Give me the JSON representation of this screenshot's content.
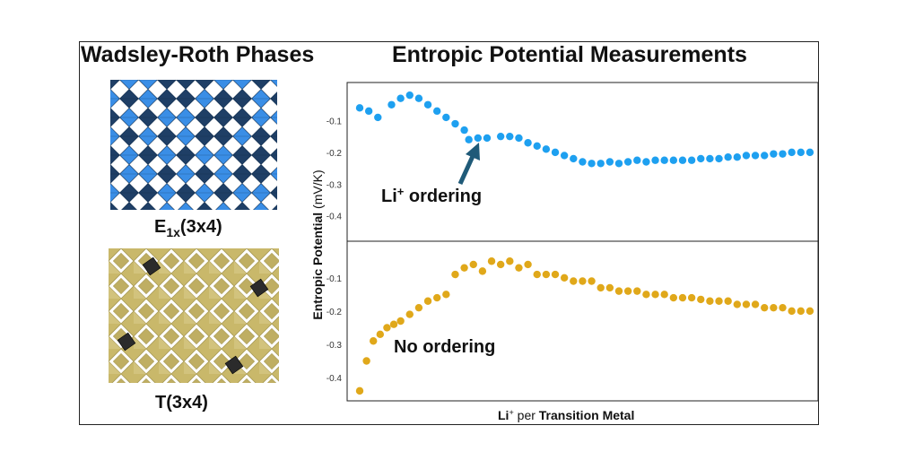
{
  "titles": {
    "left": "Wadsley-Roth Phases",
    "right": "Entropic Potential Measurements"
  },
  "structures": {
    "e_label_main": "E",
    "e_label_sub": "1x",
    "e_label_tail": "(3x4)",
    "t_label": "T(3x4)",
    "colors": {
      "e_dark": "#1f3f66",
      "e_light": "#3a8ee6",
      "t_tan": "#c9b86a",
      "t_dark": "#2b2b2b"
    }
  },
  "annotations": {
    "li_prefix": "Li",
    "li_sup": "+",
    "li_suffix": " ordering",
    "no_ordering": "No ordering"
  },
  "axes": {
    "ylabel_bold": "Entropic Potential",
    "ylabel_unit": " (mV/K)",
    "xlabel_prefix": "Li",
    "xlabel_sup": "+",
    "xlabel_mid": " per ",
    "xlabel_tail": "Transition Metal"
  },
  "chart_data": [
    {
      "type": "scatter",
      "name": "E1x(3x4)",
      "color": "#1ea0f0",
      "ylim": [
        -0.48,
        0.02
      ],
      "yticks": [
        "-0.1",
        "-0.2",
        "-0.3",
        "-0.4"
      ],
      "ytick_values": [
        -0.1,
        -0.2,
        -0.3,
        -0.4
      ],
      "x": [
        0.0,
        0.02,
        0.04,
        0.07,
        0.09,
        0.11,
        0.13,
        0.15,
        0.17,
        0.19,
        0.21,
        0.23,
        0.24,
        0.26,
        0.28,
        0.31,
        0.33,
        0.35,
        0.37,
        0.39,
        0.41,
        0.43,
        0.45,
        0.47,
        0.49,
        0.51,
        0.53,
        0.55,
        0.57,
        0.59,
        0.61,
        0.63,
        0.65,
        0.67,
        0.69,
        0.71,
        0.73,
        0.75,
        0.77,
        0.79,
        0.81,
        0.83,
        0.85,
        0.87,
        0.89,
        0.91,
        0.93,
        0.95,
        0.97,
        0.99
      ],
      "y": [
        -0.06,
        -0.07,
        -0.09,
        -0.05,
        -0.03,
        -0.02,
        -0.03,
        -0.05,
        -0.07,
        -0.09,
        -0.11,
        -0.13,
        -0.16,
        -0.155,
        -0.155,
        -0.15,
        -0.15,
        -0.155,
        -0.17,
        -0.18,
        -0.19,
        -0.2,
        -0.21,
        -0.22,
        -0.23,
        -0.235,
        -0.235,
        -0.23,
        -0.235,
        -0.23,
        -0.225,
        -0.23,
        -0.225,
        -0.225,
        -0.225,
        -0.225,
        -0.225,
        -0.22,
        -0.22,
        -0.22,
        -0.215,
        -0.215,
        -0.21,
        -0.21,
        -0.21,
        -0.205,
        -0.205,
        -0.2,
        -0.2,
        -0.2
      ]
    },
    {
      "type": "scatter",
      "name": "T(3x4)",
      "color": "#e0a81a",
      "ylim": [
        -0.47,
        0.01
      ],
      "yticks": [
        "-0.1",
        "-0.2",
        "-0.3",
        "-0.4"
      ],
      "ytick_values": [
        -0.1,
        -0.2,
        -0.3,
        -0.4
      ],
      "x": [
        0.0,
        0.015,
        0.03,
        0.045,
        0.06,
        0.075,
        0.09,
        0.11,
        0.13,
        0.15,
        0.17,
        0.19,
        0.21,
        0.23,
        0.25,
        0.27,
        0.29,
        0.31,
        0.33,
        0.35,
        0.37,
        0.39,
        0.41,
        0.43,
        0.45,
        0.47,
        0.49,
        0.51,
        0.53,
        0.55,
        0.57,
        0.59,
        0.61,
        0.63,
        0.65,
        0.67,
        0.69,
        0.71,
        0.73,
        0.75,
        0.77,
        0.79,
        0.81,
        0.83,
        0.85,
        0.87,
        0.89,
        0.91,
        0.93,
        0.95,
        0.97,
        0.99
      ],
      "y": [
        -0.44,
        -0.35,
        -0.29,
        -0.27,
        -0.25,
        -0.24,
        -0.23,
        -0.21,
        -0.19,
        -0.17,
        -0.16,
        -0.15,
        -0.09,
        -0.07,
        -0.06,
        -0.08,
        -0.05,
        -0.06,
        -0.05,
        -0.07,
        -0.06,
        -0.09,
        -0.09,
        -0.09,
        -0.1,
        -0.11,
        -0.11,
        -0.11,
        -0.13,
        -0.13,
        -0.14,
        -0.14,
        -0.14,
        -0.15,
        -0.15,
        -0.15,
        -0.16,
        -0.16,
        -0.16,
        -0.165,
        -0.17,
        -0.17,
        -0.17,
        -0.18,
        -0.18,
        -0.18,
        -0.19,
        -0.19,
        -0.19,
        -0.2,
        -0.2,
        -0.2
      ]
    }
  ]
}
